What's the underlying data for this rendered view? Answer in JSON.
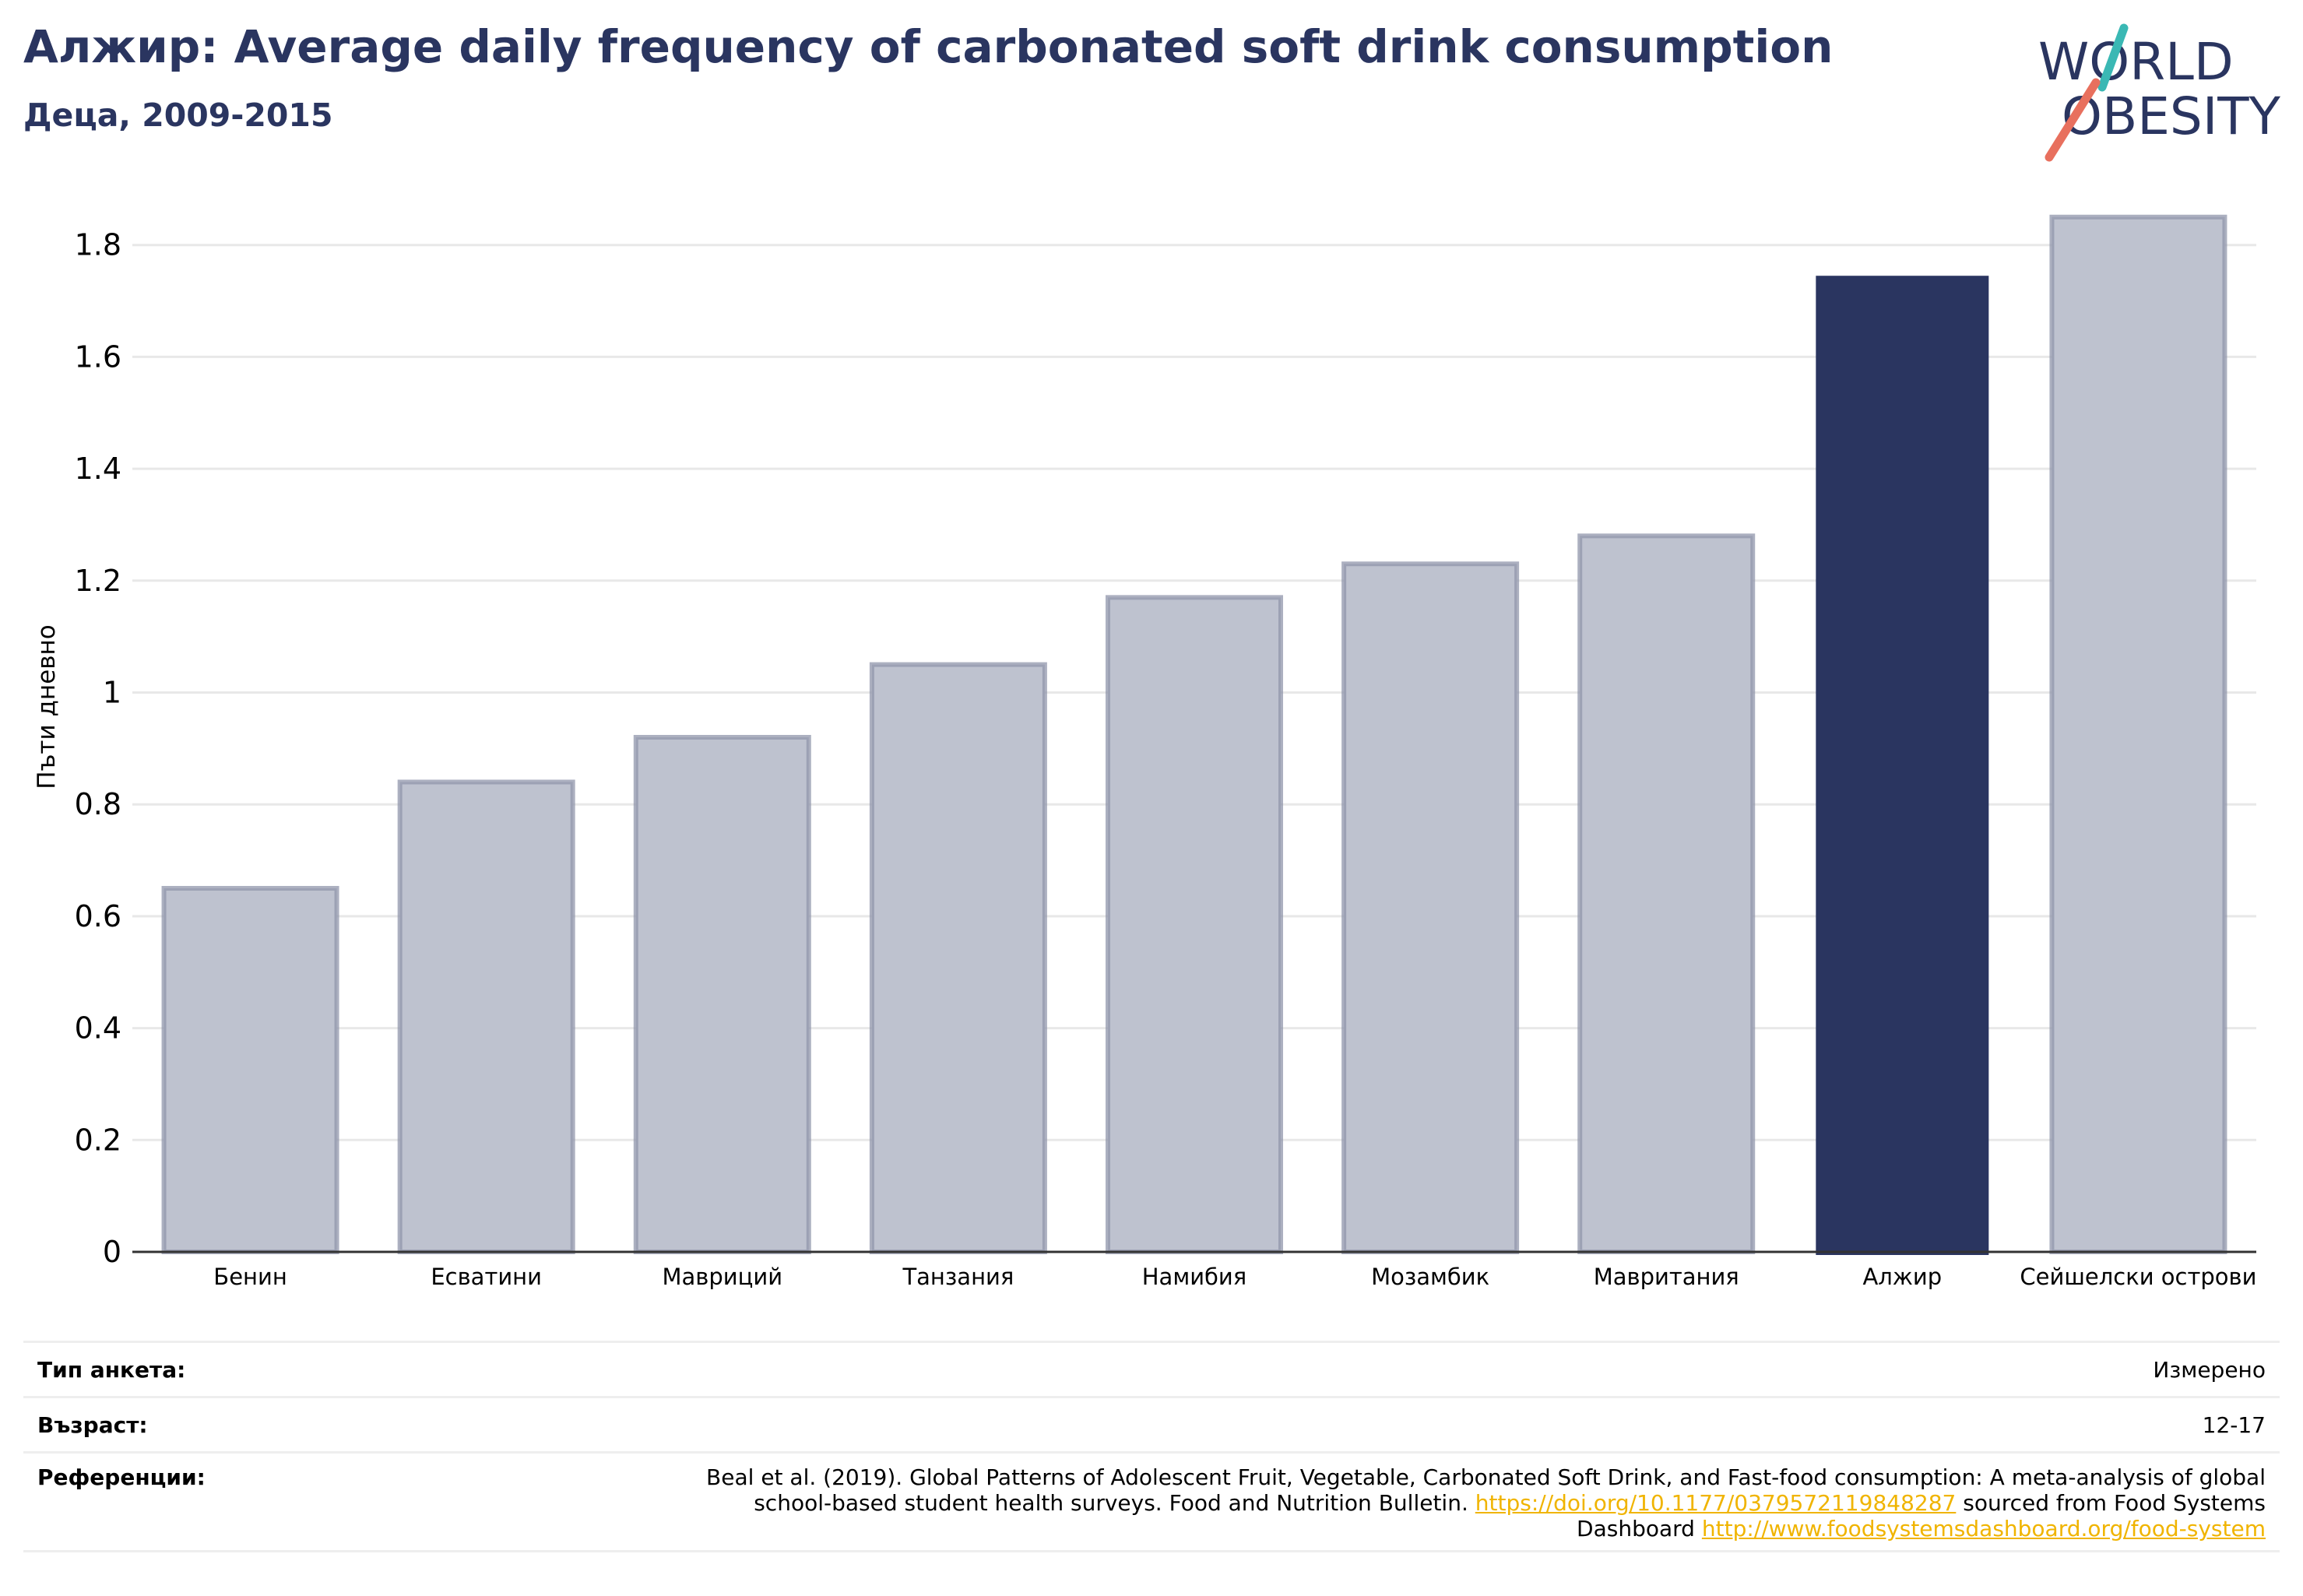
{
  "header": {
    "title": "Алжир: Average daily frequency of carbonated soft drink consumption",
    "subtitle": "Деца, 2009-2015"
  },
  "logo": {
    "line1": "WORLD",
    "line2": "OBESITY"
  },
  "colors": {
    "highlight": "#2a3560",
    "bar": "#bec2cf",
    "bar_edge": "#9096ab",
    "logo_text": "#2a3560",
    "logo_teal": "#3ab8b4",
    "logo_coral": "#e8705e",
    "link": "#f0b400"
  },
  "chart_data": {
    "type": "bar",
    "categories": [
      "Бенин",
      "Есватини",
      "Мавриций",
      "Танзания",
      "Намибия",
      "Мозамбик",
      "Мавритания",
      "Алжир",
      "Сейшелски острови"
    ],
    "values": [
      0.65,
      0.84,
      0.92,
      1.05,
      1.17,
      1.23,
      1.28,
      1.745,
      1.85
    ],
    "highlight": "Алжир",
    "ylabel": "Пъти дневно",
    "ylim": [
      0,
      1.85
    ],
    "yticks": [
      "0",
      "0.2",
      "0.4",
      "0.6",
      "0.8",
      "1",
      "1.2",
      "1.4",
      "1.6",
      "1.8"
    ],
    "grid": true,
    "legend": "none"
  },
  "info": {
    "survey_type_label": "Тип анкета:",
    "survey_type_value": "Измерено",
    "age_label": "Възраст:",
    "age_value": "12-17",
    "references_label": "Референции:",
    "ref_text_1": "Beal et al. (2019). Global Patterns of Adolescent Fruit, Vegetable, Carbonated Soft Drink, and Fast-food consumption: A meta-analysis of global school-based student health surveys. Food and Nutrition Bulletin.",
    "ref_link_1": "https://doi.org/10.1177/0379572119848287",
    "ref_text_2": "sourced from Food Systems Dashboard",
    "ref_link_2": "http://www.foodsystemsdashboard.org/food-system"
  }
}
